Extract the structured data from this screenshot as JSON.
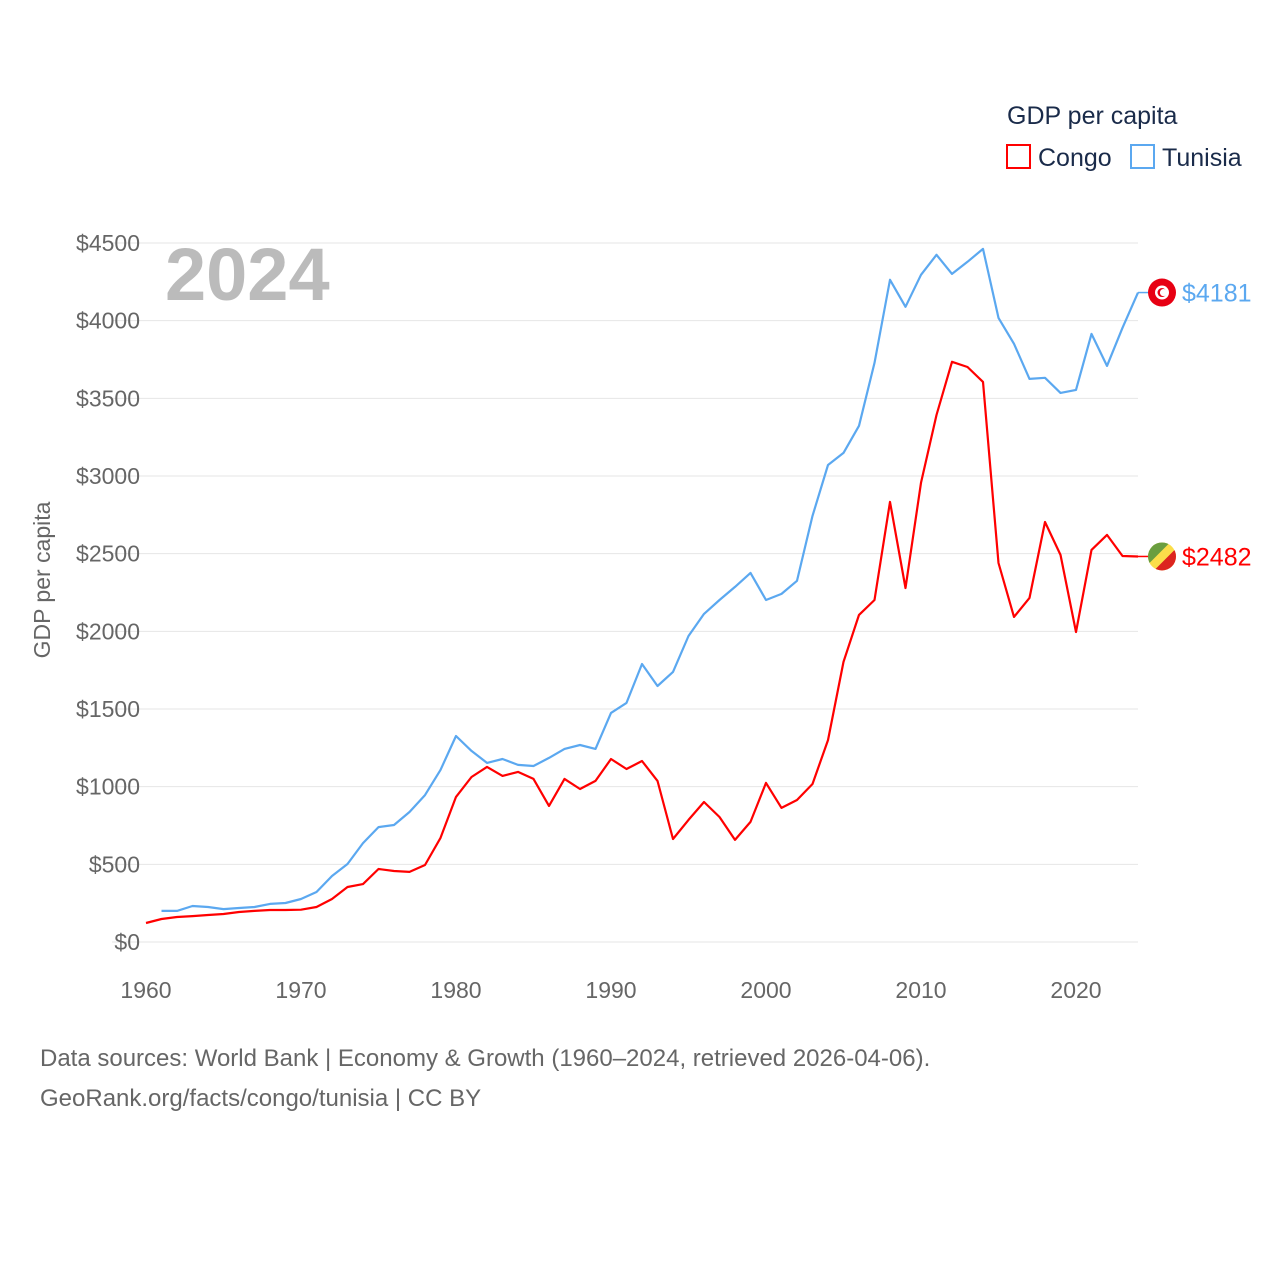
{
  "chart_data": {
    "type": "line",
    "title": "2024",
    "xlabel": "",
    "ylabel": "GDP per capita",
    "xlim": [
      1960,
      2024
    ],
    "ylim": [
      0,
      4500
    ],
    "grid": true,
    "legend": {
      "title": "GDP per capita",
      "placement": "top-right"
    },
    "x_ticks": [
      "1960",
      "1970",
      "1980",
      "1990",
      "2000",
      "2010",
      "2020"
    ],
    "y_ticks": [
      "$0",
      "$500",
      "$1000",
      "$1500",
      "$2000",
      "$2500",
      "$3000",
      "$3500",
      "$4000",
      "$4500"
    ],
    "series": [
      {
        "name": "Congo",
        "color": "#ff0000",
        "end_label": "$2482",
        "flag": "congo-flag",
        "start_year": 1960,
        "values": [
          122,
          148,
          161,
          167,
          174,
          180,
          193,
          200,
          206,
          206,
          208,
          225,
          277,
          354,
          373,
          470,
          457,
          451,
          496,
          670,
          934,
          1062,
          1127,
          1069,
          1095,
          1050,
          876,
          1050,
          985,
          1037,
          1178,
          1114,
          1165,
          1037,
          663,
          786,
          901,
          805,
          657,
          773,
          1024,
          863,
          914,
          1017,
          1300,
          1803,
          2106,
          2202,
          2833,
          2279,
          2956,
          3393,
          3735,
          3702,
          3606,
          2440,
          2093,
          2215,
          2704,
          2492,
          1996,
          2524,
          2621,
          2485,
          2482
        ]
      },
      {
        "name": "Tunisia",
        "color": "#5ba8f0",
        "end_label": "$4181",
        "flag": "tunisia-flag",
        "start_year": 1961,
        "values": [
          200,
          200,
          232,
          225,
          212,
          219,
          225,
          245,
          251,
          277,
          322,
          425,
          502,
          637,
          740,
          753,
          837,
          946,
          1108,
          1326,
          1230,
          1153,
          1178,
          1140,
          1133,
          1185,
          1243,
          1268,
          1243,
          1475,
          1539,
          1790,
          1648,
          1739,
          1970,
          2112,
          2202,
          2286,
          2376,
          2202,
          2241,
          2325,
          2743,
          3071,
          3149,
          3323,
          3728,
          4263,
          4089,
          4295,
          4424,
          4301,
          4379,
          4462,
          4018,
          3851,
          3625,
          3632,
          3535,
          3554,
          3915,
          3709,
          3954,
          4181
        ]
      }
    ]
  },
  "footer": {
    "line1": "Data sources: World Bank | Economy & Growth (1960–2024, retrieved 2026-04-06).",
    "line2": "GeoRank.org/facts/congo/tunisia | CC BY"
  }
}
